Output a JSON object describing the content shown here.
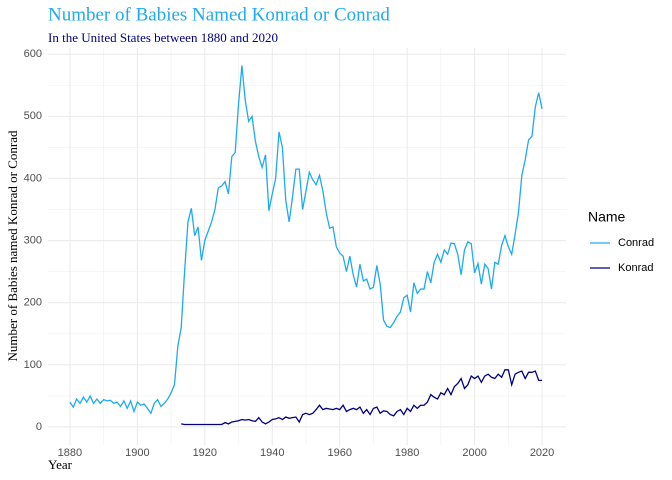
{
  "chart_data": {
    "type": "line",
    "title": "Number of Babies Named Konrad or Conrad",
    "subtitle": "In the United States between 1880 and 2020",
    "x_label": "Year",
    "y_label": "Number of Babies named Konrad or Conrad",
    "legend_title": "Name",
    "legend_position": "right",
    "grid": true,
    "xlim": [
      1873.5,
      2027.1
    ],
    "ylim": [
      -29,
      610
    ],
    "xticks": [
      1880,
      1900,
      1920,
      1940,
      1960,
      1980,
      2000,
      2020
    ],
    "yticks": [
      0,
      100,
      200,
      300,
      400,
      500,
      600
    ],
    "x": [
      1880,
      1881,
      1882,
      1883,
      1884,
      1885,
      1886,
      1887,
      1888,
      1889,
      1890,
      1891,
      1892,
      1893,
      1894,
      1895,
      1896,
      1897,
      1898,
      1899,
      1900,
      1901,
      1902,
      1903,
      1904,
      1905,
      1906,
      1907,
      1908,
      1909,
      1910,
      1911,
      1912,
      1913,
      1914,
      1915,
      1916,
      1917,
      1918,
      1919,
      1920,
      1921,
      1922,
      1923,
      1924,
      1925,
      1926,
      1927,
      1928,
      1929,
      1930,
      1931,
      1932,
      1933,
      1934,
      1935,
      1936,
      1937,
      1938,
      1939,
      1940,
      1941,
      1942,
      1943,
      1944,
      1945,
      1946,
      1947,
      1948,
      1949,
      1950,
      1951,
      1952,
      1953,
      1954,
      1955,
      1956,
      1957,
      1958,
      1959,
      1960,
      1961,
      1962,
      1963,
      1964,
      1965,
      1966,
      1967,
      1968,
      1969,
      1970,
      1971,
      1972,
      1973,
      1974,
      1975,
      1976,
      1977,
      1978,
      1979,
      1980,
      1981,
      1982,
      1983,
      1984,
      1985,
      1986,
      1987,
      1988,
      1989,
      1990,
      1991,
      1992,
      1993,
      1994,
      1995,
      1996,
      1997,
      1998,
      1999,
      2000,
      2001,
      2002,
      2003,
      2004,
      2005,
      2006,
      2007,
      2008,
      2009,
      2010,
      2011,
      2012,
      2013,
      2014,
      2015,
      2016,
      2017,
      2018,
      2019,
      2020
    ],
    "series": [
      {
        "name": "Conrad",
        "color": "#1eaaf1",
        "values": [
          40,
          32,
          45,
          38,
          48,
          40,
          50,
          38,
          45,
          38,
          44,
          42,
          43,
          38,
          40,
          33,
          42,
          30,
          42,
          25,
          40,
          35,
          37,
          30,
          22,
          38,
          44,
          33,
          38,
          45,
          55,
          68,
          130,
          160,
          250,
          330,
          352,
          308,
          322,
          268,
          300,
          315,
          330,
          350,
          385,
          388,
          395,
          375,
          435,
          442,
          520,
          582,
          525,
          492,
          500,
          460,
          435,
          418,
          438,
          348,
          375,
          400,
          475,
          450,
          365,
          330,
          370,
          415,
          415,
          350,
          380,
          410,
          398,
          390,
          405,
          380,
          345,
          320,
          322,
          290,
          280,
          275,
          250,
          275,
          245,
          225,
          262,
          235,
          238,
          222,
          225,
          260,
          230,
          172,
          162,
          160,
          168,
          178,
          185,
          208,
          212,
          185,
          232,
          215,
          222,
          222,
          250,
          232,
          265,
          278,
          265,
          285,
          278,
          296,
          295,
          278,
          245,
          285,
          298,
          295,
          248,
          263,
          230,
          262,
          255,
          222,
          265,
          262,
          292,
          308,
          290,
          278,
          310,
          345,
          405,
          430,
          462,
          468,
          515,
          538,
          512
        ]
      },
      {
        "name": "Konrad",
        "color": "#000080",
        "values": [
          null,
          null,
          null,
          null,
          null,
          null,
          null,
          null,
          null,
          null,
          null,
          null,
          null,
          null,
          null,
          null,
          null,
          null,
          null,
          null,
          null,
          null,
          null,
          null,
          null,
          null,
          null,
          null,
          null,
          null,
          null,
          null,
          null,
          5,
          4,
          4,
          4,
          4,
          4,
          4,
          4,
          4,
          4,
          4,
          4,
          4,
          7,
          5,
          8,
          9,
          10,
          12,
          11,
          12,
          10,
          9,
          15,
          8,
          5,
          8,
          12,
          13,
          15,
          12,
          16,
          14,
          15,
          16,
          8,
          20,
          22,
          20,
          22,
          28,
          35,
          28,
          30,
          29,
          28,
          30,
          28,
          35,
          25,
          28,
          30,
          28,
          32,
          22,
          28,
          20,
          30,
          32,
          22,
          26,
          25,
          20,
          18,
          25,
          28,
          20,
          30,
          25,
          35,
          30,
          35,
          35,
          40,
          52,
          48,
          45,
          55,
          52,
          62,
          52,
          65,
          70,
          78,
          62,
          68,
          82,
          78,
          82,
          72,
          82,
          85,
          80,
          78,
          85,
          80,
          92,
          92,
          68,
          85,
          88,
          90,
          78,
          88,
          88,
          90,
          75,
          75
        ]
      }
    ]
  }
}
